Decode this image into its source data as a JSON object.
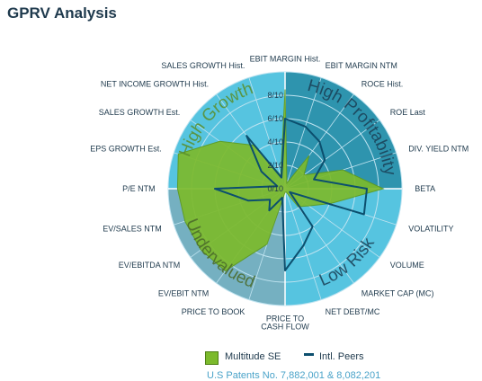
{
  "title": "GPRV Analysis",
  "colors": {
    "value_zone": "#56c4e0",
    "value_zone_dark": "#2a8fa8",
    "grid": "#bfe3f0",
    "peer_fill": "#7cba2c",
    "intl_peers_line": "#0c4f6e",
    "title": "#1f3a4d",
    "patent": "#4aa3c9"
  },
  "zones": [
    "High Growth",
    "High Profitability",
    "Low Risk",
    "Undervalued"
  ],
  "legend": {
    "fill_label": "Multitude SE",
    "line_label": "Intl. Peers"
  },
  "patent": "U.S Patents No. 7,882,001 & 8,082,201",
  "chart_data": {
    "type": "radar",
    "title": "",
    "scale_labels": [
      "0/10",
      "2/10",
      "4/10",
      "6/10",
      "8/10"
    ],
    "rmax": 10,
    "axes": [
      "EBIT MARGIN Hist.",
      "EBIT MARGIN NTM",
      "ROCE Hist.",
      "ROE  Last",
      "DIV. YIELD NTM",
      "BETA",
      "VOLATILITY",
      "VOLUME",
      "MARKET CAP (MC)",
      "NET DEBT/MC",
      "PRICE TO CASH FLOW",
      "PRICE TO BOOK",
      "EV/EBIT NTM",
      "EV/EBITDA NTM",
      "EV/SALES NTM",
      "P/E NTM",
      "EPS GROWTH Est.",
      "SALES GROWTH Est.",
      "NET INCOME GROWTH Hist.",
      "SALES GROWTH Hist."
    ],
    "series": [
      {
        "name": "Multitude SE",
        "style": "fill",
        "values": [
          8.5,
          0.5,
          3.5,
          2.0,
          5.2,
          8.4,
          4.1,
          2.5,
          1.9,
          0.3,
          0.3,
          5.0,
          8.7,
          8.9,
          9.0,
          9.2,
          9.6,
          6.9,
          4.6,
          1.2
        ]
      },
      {
        "name": "Intl. Peers",
        "style": "line",
        "values": [
          6.0,
          5.6,
          5.0,
          4.2,
          2.6,
          7.0,
          7.1,
          0.5,
          4.0,
          5.1,
          7.0,
          0.8,
          2.3,
          1.6,
          3.3,
          6.0,
          0.7,
          2.5,
          5.6,
          1.0
        ]
      }
    ]
  }
}
